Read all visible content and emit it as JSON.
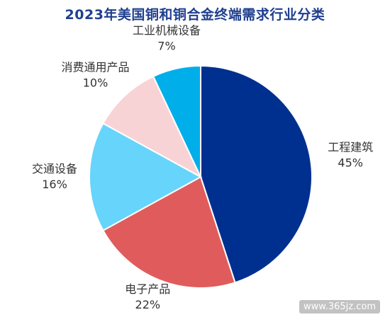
{
  "chart_data": {
    "type": "pie",
    "title": "2023年美国铜和铜合金终端需求行业分类",
    "slices": [
      {
        "label": "工程建筑",
        "value": 45,
        "display": "45%",
        "color": "#00308f"
      },
      {
        "label": "电子产品",
        "value": 22,
        "display": "22%",
        "color": "#e05c5c"
      },
      {
        "label": "交通设备",
        "value": 16,
        "display": "16%",
        "color": "#66d4fb"
      },
      {
        "label": "消费通用产品",
        "value": 10,
        "display": "10%",
        "color": "#f8d3d5"
      },
      {
        "label": "工业机械设备",
        "value": 7,
        "display": "7%",
        "color": "#00aeea"
      }
    ],
    "start_angle_deg": 0,
    "direction": "clockwise",
    "legend": "none"
  },
  "watermark": "www.365jz.com"
}
